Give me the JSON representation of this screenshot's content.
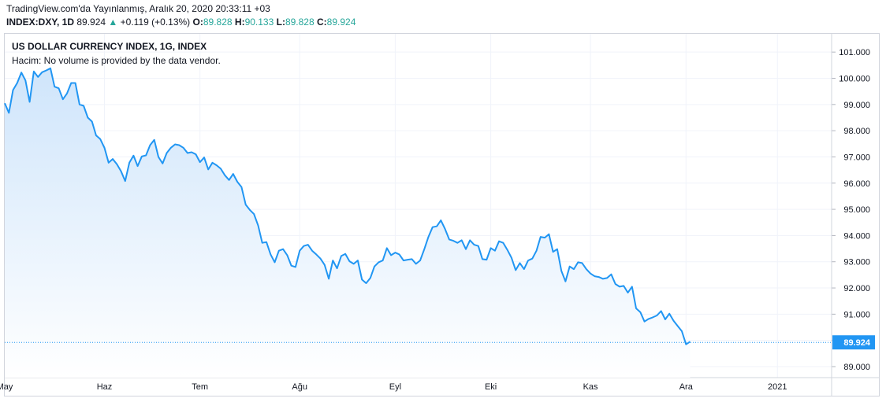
{
  "header": {
    "published": "TradingView.com'da Yayınlanmış, Aralık 20, 2020 20:33:11 +03",
    "symbol": "INDEX:DXY, 1D",
    "last": "89.924",
    "change_arrow": "▲",
    "change": "+0.119 (+0.13%)",
    "o_label": "O:",
    "o_value": "89.828",
    "h_label": "H:",
    "h_value": "90.133",
    "l_label": "L:",
    "l_value": "89.828",
    "c_label": "C:",
    "c_value": "89.924"
  },
  "colors": {
    "line": "#2196f3",
    "area_top": "#cfe5fb",
    "area_bottom": "#ffffff",
    "grid": "#f0f3fa",
    "price_tag": "#2196f3",
    "up": "#26a69a",
    "text": "#131722"
  },
  "chart_data": {
    "type": "area",
    "title": "US DOLLAR CURRENCY INDEX, 1G, INDEX",
    "volume_note": "Hacim: No volume is provided by the data vendor.",
    "ylim": [
      88.6,
      101.6
    ],
    "y_ticks": [
      "89.000",
      "90.000",
      "91.000",
      "92.000",
      "93.000",
      "94.000",
      "95.000",
      "96.000",
      "97.000",
      "98.000",
      "99.000",
      "100.000",
      "101.000"
    ],
    "x_ticks": [
      {
        "label": "May",
        "i": 0
      },
      {
        "label": "Haz",
        "i": 24
      },
      {
        "label": "Tem",
        "i": 47
      },
      {
        "label": "Ağu",
        "i": 71
      },
      {
        "label": "Eyl",
        "i": 94
      },
      {
        "label": "Eki",
        "i": 117
      },
      {
        "label": "Kas",
        "i": 141
      },
      {
        "label": "Ara",
        "i": 164
      },
      {
        "label": "2021",
        "i": 186
      }
    ],
    "x_range": [
      0,
      188
    ],
    "last_price_label": "89.924",
    "last_value": 89.924,
    "grid": true,
    "series": [
      {
        "values": [
          99.05,
          98.68,
          99.55,
          99.82,
          100.22,
          99.92,
          99.1,
          100.26,
          100.05,
          100.23,
          100.3,
          100.38,
          99.68,
          99.62,
          99.2,
          99.42,
          99.82,
          99.82,
          99.0,
          98.95,
          98.5,
          98.35,
          97.82,
          97.68,
          97.35,
          96.78,
          96.92,
          96.72,
          96.45,
          96.08,
          96.78,
          97.05,
          96.65,
          97.02,
          97.06,
          97.45,
          97.65,
          97.0,
          96.75,
          97.15,
          97.35,
          97.48,
          97.45,
          97.35,
          97.15,
          97.18,
          97.1,
          96.8,
          96.98,
          96.52,
          96.78,
          96.68,
          96.55,
          96.3,
          96.12,
          96.35,
          96.05,
          95.85,
          95.18,
          94.98,
          94.82,
          94.38,
          93.72,
          93.75,
          93.28,
          92.98,
          93.42,
          93.48,
          93.25,
          92.85,
          92.8,
          93.42,
          93.6,
          93.65,
          93.42,
          93.28,
          93.12,
          92.88,
          92.35,
          93.05,
          92.75,
          93.22,
          93.3,
          93.02,
          92.92,
          93.05,
          92.32,
          92.18,
          92.38,
          92.82,
          92.98,
          93.05,
          93.52,
          93.25,
          93.35,
          93.28,
          93.05,
          93.08,
          93.1,
          92.92,
          93.05,
          93.48,
          93.95,
          94.32,
          94.35,
          94.58,
          94.25,
          93.85,
          93.8,
          93.72,
          93.82,
          93.48,
          93.82,
          93.65,
          93.6,
          93.1,
          93.08,
          93.52,
          93.42,
          93.78,
          93.72,
          93.45,
          93.15,
          92.68,
          92.95,
          92.72,
          93.05,
          93.12,
          93.42,
          93.95,
          93.92,
          94.05,
          93.38,
          93.48,
          92.65,
          92.25,
          92.82,
          92.72,
          92.98,
          92.95,
          92.72,
          92.55,
          92.45,
          92.42,
          92.35,
          92.38,
          92.52,
          92.15,
          92.05,
          92.08,
          91.82,
          92.05,
          91.22,
          91.08,
          90.72,
          90.82,
          90.88,
          90.95,
          91.12,
          90.8,
          91.02,
          90.75,
          90.55,
          90.35,
          89.85,
          89.95
        ]
      }
    ]
  }
}
